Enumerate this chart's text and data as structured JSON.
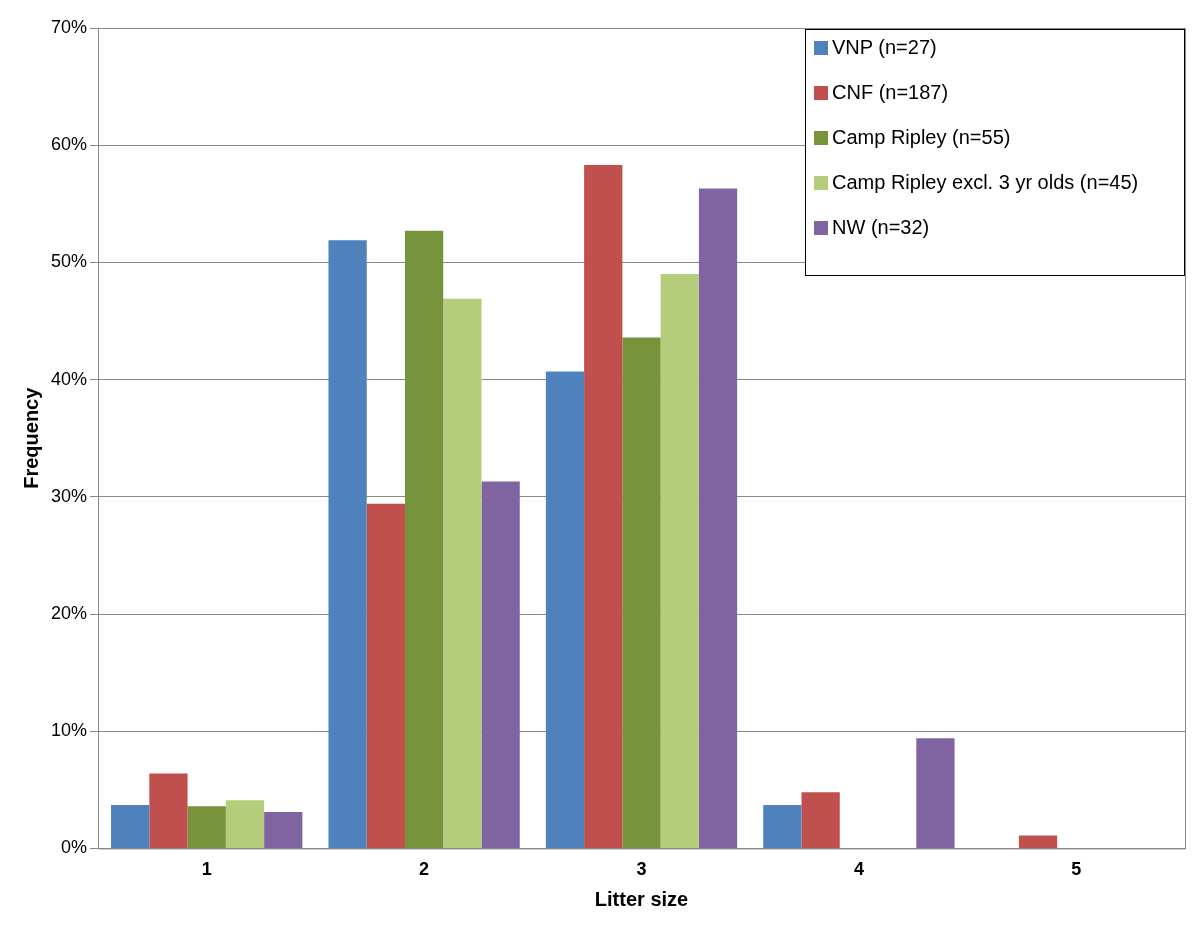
{
  "chart_data": {
    "type": "bar",
    "xlabel": "Litter size",
    "ylabel": "Frequency",
    "categories": [
      "1",
      "2",
      "3",
      "4",
      "5"
    ],
    "series": [
      {
        "name": "VNP (n=27)",
        "color": "#4f81bd",
        "values": [
          3.7,
          51.9,
          40.7,
          3.7,
          0
        ]
      },
      {
        "name": "CNF (n=187)",
        "color": "#c0504d",
        "values": [
          6.4,
          29.4,
          58.3,
          4.8,
          1.1
        ]
      },
      {
        "name": "Camp Ripley (n=55)",
        "color": "#77933c",
        "values": [
          3.6,
          52.7,
          43.6,
          0,
          0
        ]
      },
      {
        "name": "Camp Ripley excl. 3 yr olds (n=45)",
        "color": "#b5cc7a",
        "values": [
          4.1,
          46.9,
          49.0,
          0,
          0
        ]
      },
      {
        "name": "NW (n=32)",
        "color": "#8064a2",
        "values": [
          3.1,
          31.3,
          56.3,
          9.4,
          0
        ]
      }
    ],
    "ylim": [
      0,
      70
    ],
    "yticks": [
      {
        "value": 0,
        "label": "0%"
      },
      {
        "value": 10,
        "label": "10%"
      },
      {
        "value": 20,
        "label": "20%"
      },
      {
        "value": 30,
        "label": "30%"
      },
      {
        "value": 40,
        "label": "40%"
      },
      {
        "value": 50,
        "label": "50%"
      },
      {
        "value": 60,
        "label": "60%"
      },
      {
        "value": 70,
        "label": "70%"
      }
    ],
    "grid": "y",
    "legend": "top right"
  }
}
